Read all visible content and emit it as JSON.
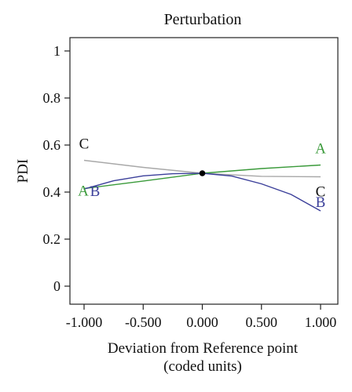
{
  "chart_data": {
    "type": "line",
    "title": "Perturbation",
    "ylabel": "PDI",
    "xlabel": "Deviation from Reference point",
    "xlabel_line2": "(coded units)",
    "xlim": [
      -1.0,
      1.0
    ],
    "ylim": [
      0,
      1
    ],
    "x_ticks": [
      -1.0,
      -0.5,
      0.0,
      0.5,
      1.0
    ],
    "x_tick_labels": [
      "-1.000",
      "-0.500",
      "0.000",
      "0.500",
      "1.000"
    ],
    "y_ticks": [
      0,
      0.2,
      0.4,
      0.6,
      0.8,
      1
    ],
    "y_tick_labels": [
      "0",
      "0.2",
      "0.4",
      "0.6",
      "0.8",
      "1"
    ],
    "reference_point": {
      "x": 0.0,
      "y": 0.48
    },
    "grid": false,
    "series": [
      {
        "name": "A",
        "color": "#3a9a3a",
        "x": [
          -1.0,
          -0.5,
          0.0,
          0.5,
          1.0
        ],
        "y": [
          0.415,
          0.447,
          0.48,
          0.5,
          0.515
        ]
      },
      {
        "name": "B",
        "color": "#3b3f9a",
        "x": [
          -1.0,
          -0.75,
          -0.5,
          -0.25,
          0.0,
          0.25,
          0.5,
          0.75,
          1.0
        ],
        "y": [
          0.413,
          0.448,
          0.469,
          0.478,
          0.48,
          0.468,
          0.435,
          0.39,
          0.32
        ]
      },
      {
        "name": "C",
        "color": "#a8a8a8",
        "x": [
          -1.0,
          -0.5,
          0.0,
          0.5,
          1.0
        ],
        "y": [
          0.535,
          0.505,
          0.48,
          0.467,
          0.465
        ]
      }
    ]
  }
}
